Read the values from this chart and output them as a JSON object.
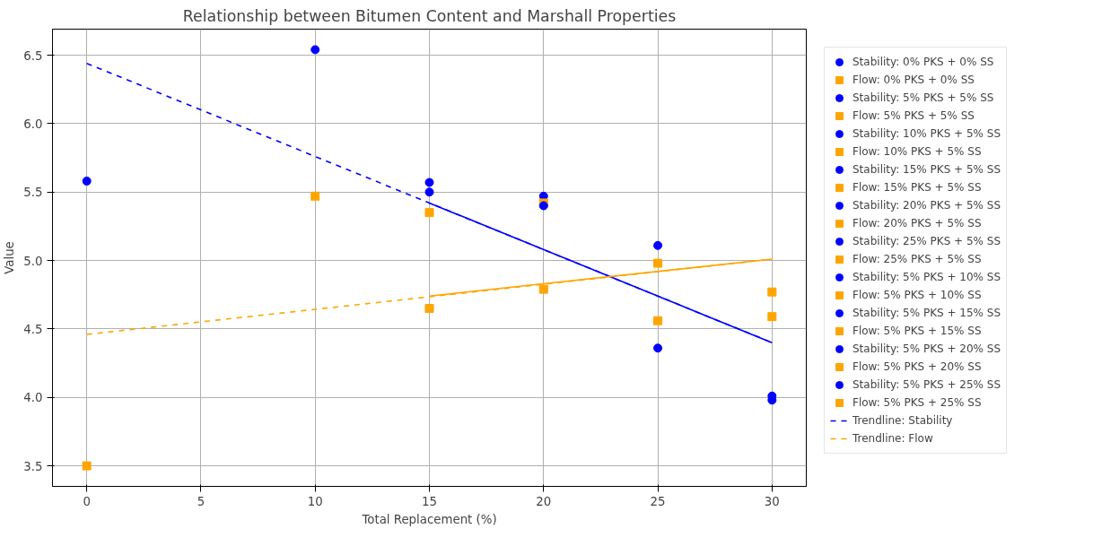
{
  "chart_data": {
    "type": "scatter",
    "title": "Relationship between Bitumen Content and Marshall Properties",
    "xlabel": "Total Replacement (%)",
    "ylabel": "Value",
    "xlim": [
      -1.5,
      31.5
    ],
    "ylim": [
      3.35,
      6.69
    ],
    "xticks": [
      0,
      5,
      10,
      15,
      20,
      25,
      30
    ],
    "yticks": [
      3.5,
      {
        "value": 4,
        "label": "4.0"
      },
      4.5,
      {
        "value": 5,
        "label": "5.0"
      },
      5.5,
      {
        "value": 6,
        "label": "6.0"
      },
      6.5
    ],
    "grid": true,
    "legend": "right",
    "series": [
      {
        "name": "Stability: 0% PKS + 0% SS",
        "color": "#0000ff",
        "marker": "circle",
        "x": [
          0
        ],
        "values": [
          5.58
        ]
      },
      {
        "name": "Flow: 0% PKS + 0% SS",
        "color": "#ffa500",
        "marker": "square",
        "x": [
          0
        ],
        "values": [
          3.5
        ]
      },
      {
        "name": "Stability: 5% PKS + 5% SS",
        "color": "#0000ff",
        "marker": "circle",
        "x": [
          10
        ],
        "values": [
          6.54
        ]
      },
      {
        "name": "Flow: 5% PKS + 5% SS",
        "color": "#ffa500",
        "marker": "square",
        "x": [
          10
        ],
        "values": [
          5.47
        ]
      },
      {
        "name": "Stability: 10% PKS + 5% SS",
        "color": "#0000ff",
        "marker": "circle",
        "x": [
          15
        ],
        "values": [
          5.57
        ]
      },
      {
        "name": "Flow: 10% PKS + 5% SS",
        "color": "#ffa500",
        "marker": "square",
        "x": [
          15
        ],
        "values": [
          5.35
        ]
      },
      {
        "name": "Stability: 15% PKS + 5% SS",
        "color": "#0000ff",
        "marker": "circle",
        "x": [
          20
        ],
        "values": [
          5.47
        ]
      },
      {
        "name": "Flow: 15% PKS + 5% SS",
        "color": "#ffa500",
        "marker": "square",
        "x": [
          20
        ],
        "values": [
          5.42
        ]
      },
      {
        "name": "Stability: 20% PKS + 5% SS",
        "color": "#0000ff",
        "marker": "circle",
        "x": [
          25
        ],
        "values": [
          5.11
        ]
      },
      {
        "name": "Flow: 20% PKS + 5% SS",
        "color": "#ffa500",
        "marker": "square",
        "x": [
          25
        ],
        "values": [
          4.98
        ]
      },
      {
        "name": "Stability: 25% PKS + 5% SS",
        "color": "#0000ff",
        "marker": "circle",
        "x": [
          30
        ],
        "values": [
          4.01
        ]
      },
      {
        "name": "Flow: 25% PKS + 5% SS",
        "color": "#ffa500",
        "marker": "square",
        "x": [
          30
        ],
        "values": [
          4.77
        ]
      },
      {
        "name": "Stability: 5% PKS + 10% SS",
        "color": "#0000ff",
        "marker": "circle",
        "x": [
          15
        ],
        "values": [
          5.5
        ]
      },
      {
        "name": "Flow: 5% PKS + 10% SS",
        "color": "#ffa500",
        "marker": "square",
        "x": [
          15
        ],
        "values": [
          4.65
        ]
      },
      {
        "name": "Stability: 5% PKS + 15% SS",
        "color": "#0000ff",
        "marker": "circle",
        "x": [
          20
        ],
        "values": [
          5.4
        ]
      },
      {
        "name": "Flow: 5% PKS + 15% SS",
        "color": "#ffa500",
        "marker": "square",
        "x": [
          20
        ],
        "values": [
          4.79
        ]
      },
      {
        "name": "Stability: 5% PKS + 20% SS",
        "color": "#0000ff",
        "marker": "circle",
        "x": [
          25
        ],
        "values": [
          4.36
        ]
      },
      {
        "name": "Flow: 5% PKS + 20% SS",
        "color": "#ffa500",
        "marker": "square",
        "x": [
          25
        ],
        "values": [
          4.56
        ]
      },
      {
        "name": "Stability: 5% PKS + 25% SS",
        "color": "#0000ff",
        "marker": "circle",
        "x": [
          30
        ],
        "values": [
          3.98
        ]
      },
      {
        "name": "Flow: 5% PKS + 25% SS",
        "color": "#ffa500",
        "marker": "square",
        "x": [
          30
        ],
        "values": [
          4.59
        ]
      },
      {
        "name": "Trendline: Stability",
        "type": "line",
        "line_style": "dashed",
        "color": "#0000ff",
        "x": [
          0,
          30
        ],
        "values": [
          6.44,
          4.4
        ]
      },
      {
        "name": "Trendline: Flow",
        "type": "line",
        "line_style": "dashed",
        "color": "#ffa500",
        "x": [
          0,
          30
        ],
        "values": [
          4.46,
          5.01
        ]
      },
      {
        "type": "line",
        "line_style": "solid",
        "color": "#0000ff",
        "x": [
          15,
          30
        ],
        "values": [
          5.42,
          4.4
        ]
      },
      {
        "type": "line",
        "line_style": "solid",
        "color": "#ffa500",
        "x": [
          15,
          30
        ],
        "values": [
          4.74,
          5.01
        ]
      }
    ]
  }
}
